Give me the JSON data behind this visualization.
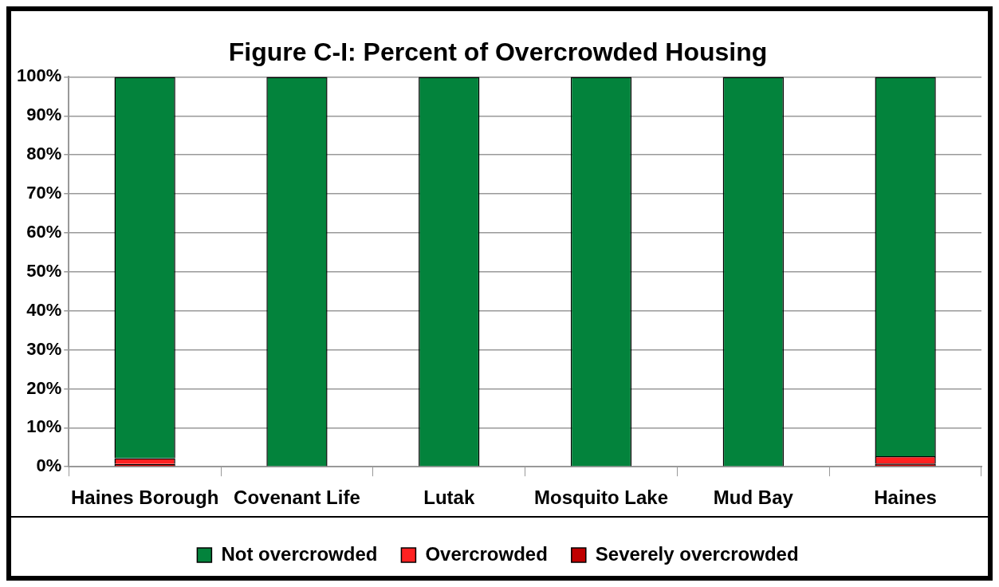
{
  "chart_data": {
    "type": "bar",
    "title": "Figure C-I: Percent of Overcrowded Housing",
    "categories": [
      "Haines Borough",
      "Covenant Life",
      "Lutak",
      "Mosquito Lake",
      "Mud Bay",
      "Haines"
    ],
    "stacked": true,
    "series": [
      {
        "name": "Severely overcrowded",
        "color": "#c00000",
        "values": [
          0.7,
          0,
          0,
          0,
          0,
          0.8
        ]
      },
      {
        "name": "Overcrowded",
        "color": "#ff2222",
        "values": [
          1.5,
          0,
          0,
          0,
          0,
          1.9
        ]
      },
      {
        "name": "Not overcrowded",
        "color": "#03833c",
        "values": [
          97.8,
          100,
          100,
          100,
          100,
          97.3
        ]
      }
    ],
    "ylim": [
      0,
      100
    ],
    "yticks": [
      {
        "value": 0,
        "label": "0%"
      },
      {
        "value": 10,
        "label": "10%"
      },
      {
        "value": 20,
        "label": "20%"
      },
      {
        "value": 30,
        "label": "30%"
      },
      {
        "value": 40,
        "label": "40%"
      },
      {
        "value": 50,
        "label": "50%"
      },
      {
        "value": 60,
        "label": "60%"
      },
      {
        "value": 70,
        "label": "70%"
      },
      {
        "value": 80,
        "label": "80%"
      },
      {
        "value": 90,
        "label": "90%"
      },
      {
        "value": 100,
        "label": "100%"
      }
    ],
    "grid": "y",
    "legend": "bottom"
  }
}
